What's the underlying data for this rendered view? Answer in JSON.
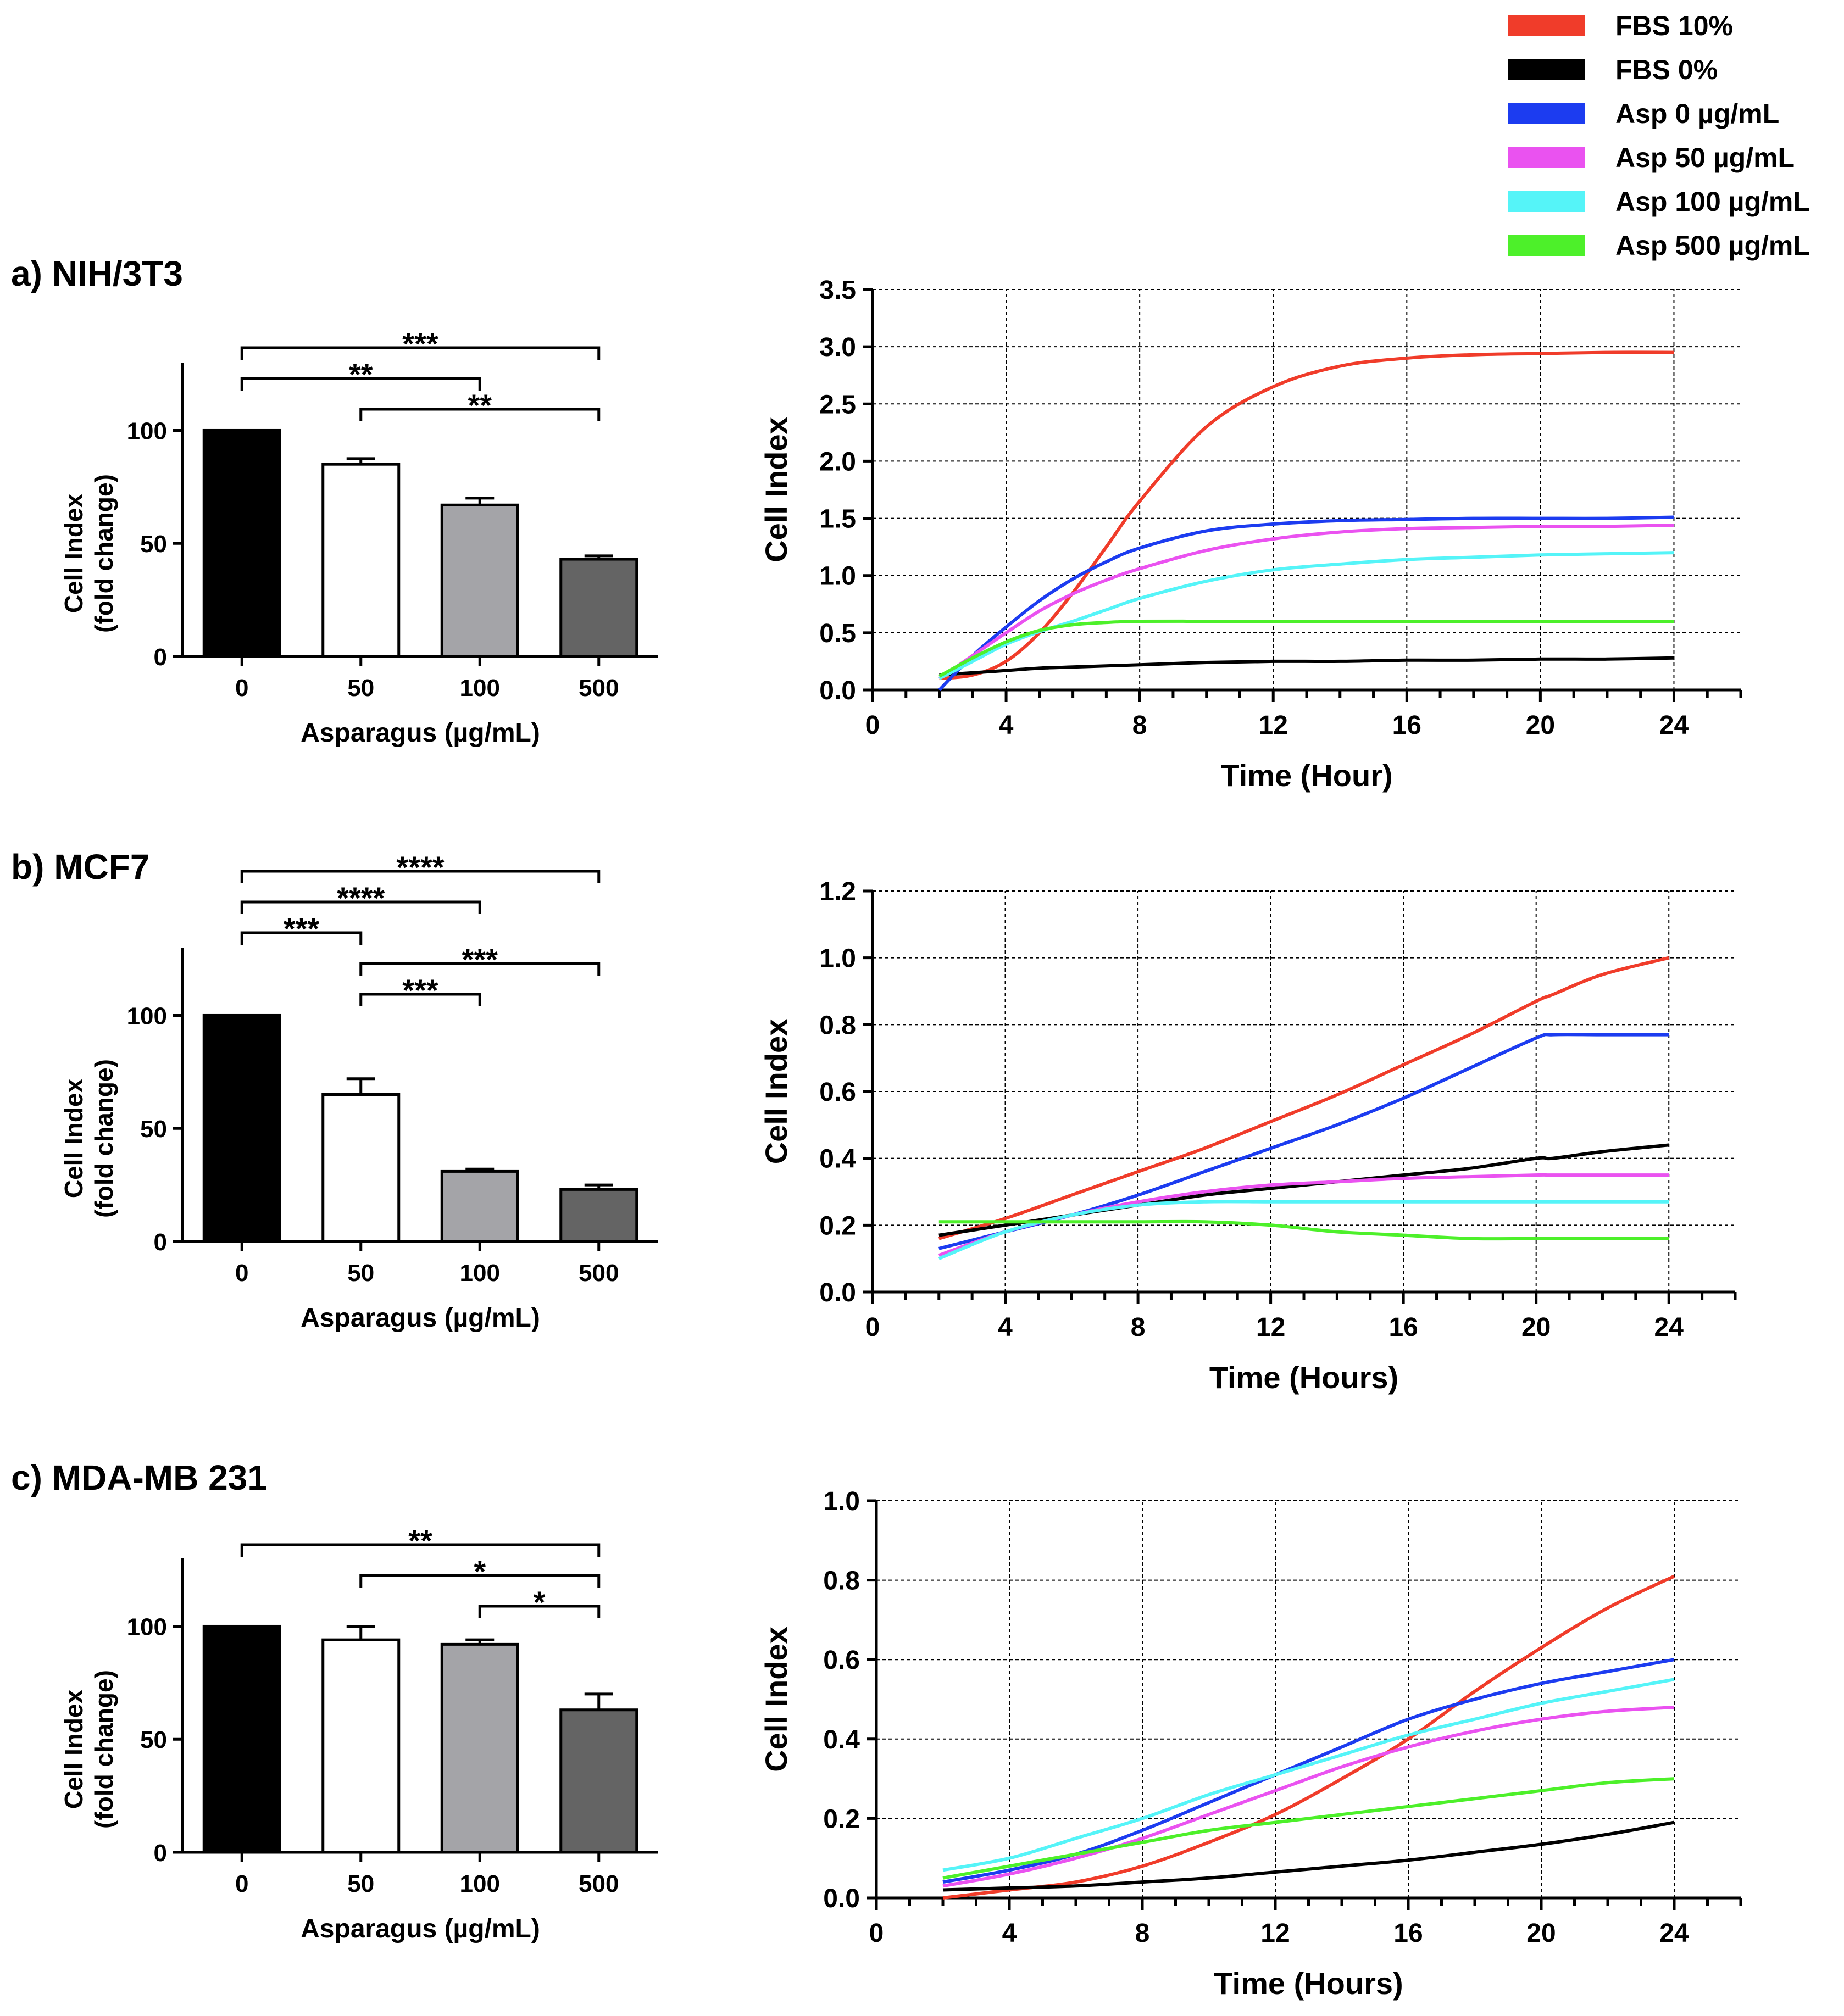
{
  "legend": [
    {
      "label": "FBS 10%",
      "color": "#f03c2a"
    },
    {
      "label": "FBS 0%",
      "color": "#000000"
    },
    {
      "label": "Asp 0 µg/mL",
      "color": "#1c3cf0"
    },
    {
      "label": "Asp 50 µg/mL",
      "color": "#ea52f0"
    },
    {
      "label": "Asp 100 µg/mL",
      "color": "#55f4f8"
    },
    {
      "label": "Asp 500 µg/mL",
      "color": "#4df02a"
    }
  ],
  "chart_data": [
    {
      "panel": "a",
      "title": "a) NIH/3T3",
      "bar": {
        "type": "bar",
        "categories": [
          "0",
          "50",
          "100",
          "500"
        ],
        "values": [
          100,
          85,
          67,
          43
        ],
        "errors": [
          0,
          2.5,
          3,
          1.5
        ],
        "colors": [
          "#000000",
          "#ffffff",
          "#a4a4a8",
          "#646464"
        ],
        "ylim": [
          0,
          130
        ],
        "yticks": [
          "0",
          "50",
          "100"
        ],
        "xlabel": "Asparagus (µg/mL)",
        "ylabel": [
          "Cell Index",
          "(fold change)"
        ],
        "significance": [
          {
            "from": 0,
            "to": 3,
            "label": "***",
            "level": 3
          },
          {
            "from": 0,
            "to": 2,
            "label": "**",
            "level": 2
          },
          {
            "from": 1,
            "to": 3,
            "label": "**",
            "level": 1
          }
        ]
      },
      "line": {
        "type": "line",
        "xlabel": "Time (Hour)",
        "ylabel": "Cell Index",
        "xlim": [
          0,
          26
        ],
        "ylim": [
          0,
          3.5
        ],
        "xticks": [
          "0",
          "4",
          "8",
          "12",
          "16",
          "20",
          "24"
        ],
        "yticks": [
          "0.0",
          "0.5",
          "1.0",
          "1.5",
          "2.0",
          "2.5",
          "3.0",
          "3.5"
        ],
        "x": [
          2,
          3,
          4,
          5,
          6,
          7,
          8,
          10,
          12,
          14,
          16,
          18,
          20,
          22,
          24
        ],
        "series": [
          {
            "name": "FBS 10%",
            "values": [
              0.1,
              0.13,
              0.25,
              0.5,
              0.85,
              1.25,
              1.65,
              2.3,
              2.65,
              2.83,
              2.9,
              2.93,
              2.94,
              2.95,
              2.95
            ]
          },
          {
            "name": "FBS 0%",
            "values": [
              0.13,
              0.15,
              0.17,
              0.19,
              0.2,
              0.21,
              0.22,
              0.24,
              0.25,
              0.25,
              0.26,
              0.26,
              0.27,
              0.27,
              0.28
            ]
          },
          {
            "name": "Asp 0 µg/mL",
            "values": [
              0.0,
              0.3,
              0.55,
              0.78,
              0.97,
              1.12,
              1.24,
              1.39,
              1.45,
              1.48,
              1.49,
              1.5,
              1.5,
              1.5,
              1.51
            ]
          },
          {
            "name": "Asp 50 µg/mL",
            "values": [
              0.1,
              0.3,
              0.5,
              0.69,
              0.84,
              0.96,
              1.06,
              1.22,
              1.32,
              1.38,
              1.41,
              1.42,
              1.43,
              1.43,
              1.44
            ]
          },
          {
            "name": "Asp 100 µg/mL",
            "values": [
              0.1,
              0.25,
              0.4,
              0.51,
              0.6,
              0.7,
              0.8,
              0.95,
              1.05,
              1.1,
              1.14,
              1.16,
              1.18,
              1.19,
              1.2
            ]
          },
          {
            "name": "Asp 500 µg/mL",
            "values": [
              0.12,
              0.28,
              0.42,
              0.52,
              0.57,
              0.59,
              0.6,
              0.6,
              0.6,
              0.6,
              0.6,
              0.6,
              0.6,
              0.6,
              0.6
            ]
          }
        ]
      }
    },
    {
      "panel": "b",
      "title": "b) MCF7",
      "bar": {
        "type": "bar",
        "categories": [
          "0",
          "50",
          "100",
          "500"
        ],
        "values": [
          100,
          65,
          31,
          23
        ],
        "errors": [
          0,
          7,
          1,
          2
        ],
        "colors": [
          "#000000",
          "#ffffff",
          "#a4a4a8",
          "#646464"
        ],
        "ylim": [
          0,
          130
        ],
        "yticks": [
          "0",
          "50",
          "100"
        ],
        "xlabel": "Asparagus (µg/mL)",
        "ylabel": [
          "Cell Index",
          "(fold change)"
        ],
        "significance": [
          {
            "from": 0,
            "to": 3,
            "label": "****",
            "level": 5
          },
          {
            "from": 0,
            "to": 2,
            "label": "****",
            "level": 4
          },
          {
            "from": 0,
            "to": 1,
            "label": "***",
            "level": 3
          },
          {
            "from": 1,
            "to": 3,
            "label": "***",
            "level": 2
          },
          {
            "from": 1,
            "to": 2,
            "label": "***",
            "level": 1
          }
        ]
      },
      "line": {
        "type": "line",
        "xlabel": "Time (Hours)",
        "ylabel": "Cell Index",
        "xlim": [
          0,
          26
        ],
        "ylim": [
          0,
          1.2
        ],
        "xticks": [
          "0",
          "4",
          "8",
          "12",
          "16",
          "20",
          "24"
        ],
        "yticks": [
          "0.0",
          "0.2",
          "0.4",
          "0.6",
          "0.8",
          "1.0",
          "1.2"
        ],
        "x": [
          2,
          4,
          6,
          8,
          10,
          12,
          14,
          16,
          18,
          20,
          20.5,
          22,
          24
        ],
        "series": [
          {
            "name": "FBS 10%",
            "values": [
              0.16,
              0.22,
              0.29,
              0.36,
              0.43,
              0.51,
              0.59,
              0.68,
              0.77,
              0.87,
              0.89,
              0.95,
              1.0
            ]
          },
          {
            "name": "FBS 0%",
            "values": [
              0.17,
              0.2,
              0.23,
              0.26,
              0.29,
              0.31,
              0.33,
              0.35,
              0.37,
              0.4,
              0.4,
              0.42,
              0.44
            ]
          },
          {
            "name": "Asp 0 µg/mL",
            "values": [
              0.13,
              0.18,
              0.23,
              0.29,
              0.36,
              0.43,
              0.5,
              0.58,
              0.67,
              0.76,
              0.77,
              0.77,
              0.77
            ]
          },
          {
            "name": "Asp 50 µg/mL",
            "values": [
              0.11,
              0.18,
              0.23,
              0.27,
              0.3,
              0.32,
              0.33,
              0.34,
              0.345,
              0.35,
              0.35,
              0.35,
              0.35
            ]
          },
          {
            "name": "Asp 100 µg/mL",
            "values": [
              0.1,
              0.18,
              0.23,
              0.26,
              0.27,
              0.27,
              0.27,
              0.27,
              0.27,
              0.27,
              0.27,
              0.27,
              0.27
            ]
          },
          {
            "name": "Asp 500 µg/mL",
            "values": [
              0.21,
              0.21,
              0.21,
              0.21,
              0.21,
              0.2,
              0.18,
              0.17,
              0.16,
              0.16,
              0.16,
              0.16,
              0.16
            ]
          }
        ]
      }
    },
    {
      "panel": "c",
      "title": "c) MDA-MB 231",
      "bar": {
        "type": "bar",
        "categories": [
          "0",
          "50",
          "100",
          "500"
        ],
        "values": [
          100,
          94,
          92,
          63
        ],
        "errors": [
          0,
          6,
          2,
          7
        ],
        "colors": [
          "#000000",
          "#ffffff",
          "#a4a4a8",
          "#646464"
        ],
        "ylim": [
          0,
          130
        ],
        "yticks": [
          "0",
          "50",
          "100"
        ],
        "xlabel": "Asparagus (µg/mL)",
        "ylabel": [
          "Cell Index",
          "(fold change)"
        ],
        "significance": [
          {
            "from": 0,
            "to": 3,
            "label": "**",
            "level": 3
          },
          {
            "from": 1,
            "to": 3,
            "label": "*",
            "level": 2
          },
          {
            "from": 2,
            "to": 3,
            "label": "*",
            "level": 1
          }
        ]
      },
      "line": {
        "type": "line",
        "xlabel": "Time (Hours)",
        "ylabel": "Cell Index",
        "xlim": [
          0,
          26
        ],
        "ylim": [
          0,
          1.0
        ],
        "xticks": [
          "0",
          "4",
          "8",
          "12",
          "16",
          "20",
          "24"
        ],
        "yticks": [
          "0.0",
          "0.2",
          "0.4",
          "0.6",
          "0.8",
          "1.0"
        ],
        "x": [
          2,
          4,
          6,
          8,
          10,
          12,
          14,
          16,
          18,
          20,
          22,
          24
        ],
        "series": [
          {
            "name": "FBS 10%",
            "values": [
              0.0,
              0.02,
              0.04,
              0.08,
              0.14,
              0.21,
              0.3,
              0.4,
              0.52,
              0.63,
              0.73,
              0.81
            ]
          },
          {
            "name": "FBS 0%",
            "values": [
              0.02,
              0.025,
              0.03,
              0.04,
              0.05,
              0.065,
              0.08,
              0.095,
              0.115,
              0.135,
              0.16,
              0.19
            ]
          },
          {
            "name": "Asp 0 µg/mL",
            "values": [
              0.04,
              0.07,
              0.11,
              0.17,
              0.24,
              0.31,
              0.38,
              0.45,
              0.5,
              0.54,
              0.57,
              0.6
            ]
          },
          {
            "name": "Asp 50 µg/mL",
            "values": [
              0.03,
              0.06,
              0.1,
              0.15,
              0.21,
              0.27,
              0.33,
              0.38,
              0.42,
              0.45,
              0.47,
              0.48
            ]
          },
          {
            "name": "Asp 100 µg/mL",
            "values": [
              0.07,
              0.1,
              0.15,
              0.2,
              0.26,
              0.31,
              0.36,
              0.41,
              0.45,
              0.49,
              0.52,
              0.55
            ]
          },
          {
            "name": "Asp 500 µg/mL",
            "values": [
              0.05,
              0.08,
              0.11,
              0.14,
              0.17,
              0.19,
              0.21,
              0.23,
              0.25,
              0.27,
              0.29,
              0.3
            ]
          }
        ]
      }
    }
  ]
}
